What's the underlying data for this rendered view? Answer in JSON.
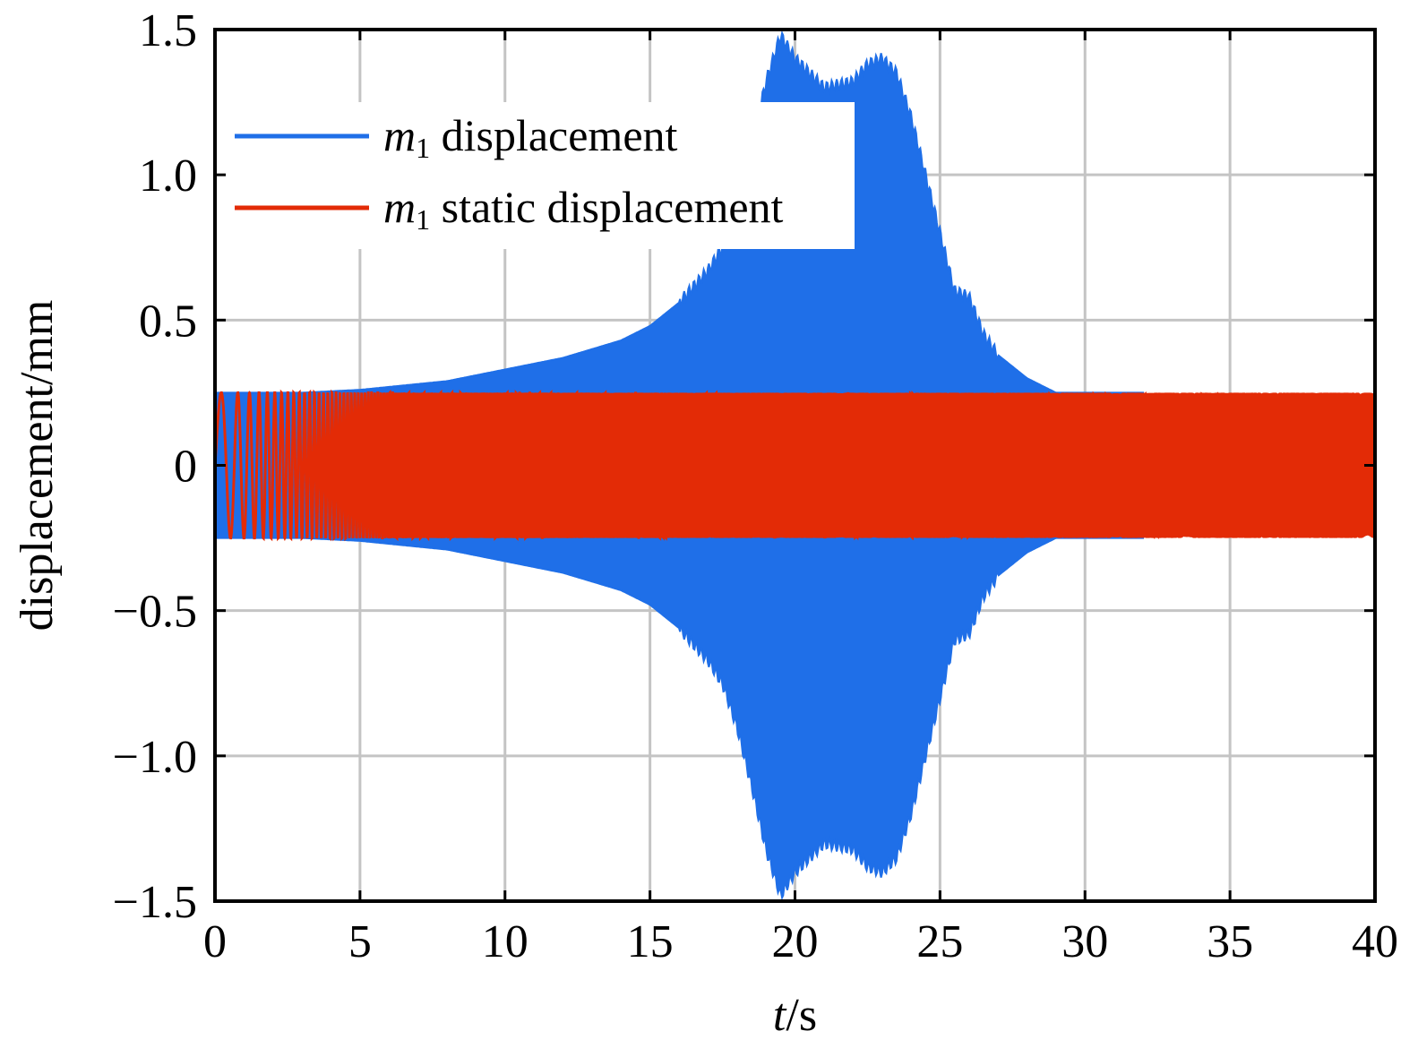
{
  "chart_data": {
    "type": "line",
    "xlabel": "t/s",
    "xlabel_italic_part": "t",
    "xlabel_rest": "/s",
    "ylabel": "displacement/mm",
    "xlim": [
      0,
      40
    ],
    "ylim": [
      -1.5,
      1.5
    ],
    "xticks": [
      0,
      5,
      10,
      15,
      20,
      25,
      30,
      35,
      40
    ],
    "xtick_labels": [
      "0",
      "5",
      "10",
      "15",
      "20",
      "25",
      "30",
      "35",
      "40"
    ],
    "yticks": [
      -1.5,
      -1.0,
      -0.5,
      0,
      0.5,
      1.0,
      1.5
    ],
    "ytick_labels": [
      "−1.5",
      "−1.0",
      "−0.5",
      "0",
      "0.5",
      "1.0",
      "1.5"
    ],
    "grid": true,
    "legend_position": "top-left",
    "series": [
      {
        "name": "m1 displacement",
        "legend_italic": "m",
        "legend_sub": "1",
        "legend_rest": " displacement",
        "color": "#1f6fe8",
        "style": "oscillation-envelope",
        "envelope": {
          "t": [
            0,
            3,
            5,
            8,
            10,
            12,
            14,
            15,
            16,
            17,
            17.5,
            18,
            18.5,
            19,
            19.5,
            20,
            20.5,
            21,
            22,
            22.5,
            23,
            23.5,
            24,
            24.5,
            25,
            25.5,
            26,
            26.5,
            27,
            28,
            29,
            30,
            31,
            32
          ],
          "amplitude": [
            0.25,
            0.25,
            0.26,
            0.29,
            0.33,
            0.37,
            0.43,
            0.48,
            0.56,
            0.67,
            0.75,
            0.9,
            1.1,
            1.32,
            1.48,
            1.4,
            1.35,
            1.3,
            1.32,
            1.38,
            1.4,
            1.35,
            1.2,
            1.0,
            0.8,
            0.6,
            0.58,
            0.45,
            0.38,
            0.3,
            0.25,
            0.25,
            0.25,
            0.25
          ]
        }
      },
      {
        "name": "m1 static displacement",
        "legend_italic": "m",
        "legend_sub": "1",
        "legend_rest": " static displacement",
        "color": "#e32b06",
        "style": "chirp",
        "amplitude": 0.25,
        "start_frequency_hz": 1.0,
        "frequency_rate_hz_per_s": 1.5
      }
    ]
  }
}
